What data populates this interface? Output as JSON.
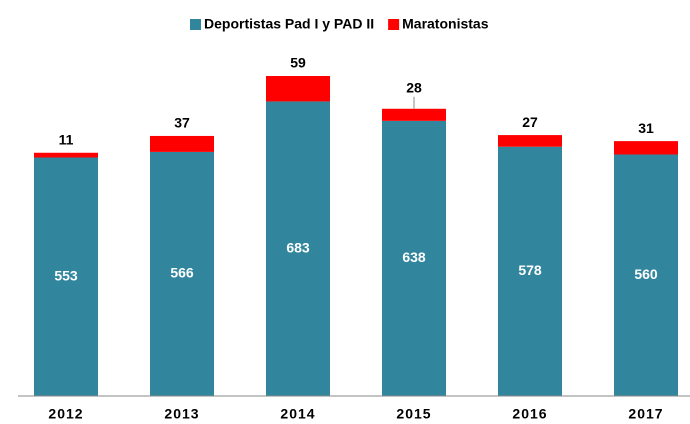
{
  "chart_data": {
    "type": "stacked_bar",
    "categories": [
      "2012",
      "2013",
      "2014",
      "2015",
      "2016",
      "2017"
    ],
    "series": [
      {
        "name": "Deportistas Pad I  y PAD II",
        "color": "#31869e",
        "values": [
          553,
          566,
          683,
          638,
          578,
          560
        ]
      },
      {
        "name": "Maratonistas",
        "color": "#ff0000",
        "values": [
          11,
          37,
          59,
          28,
          27,
          31
        ]
      }
    ],
    "legend": "top"
  }
}
